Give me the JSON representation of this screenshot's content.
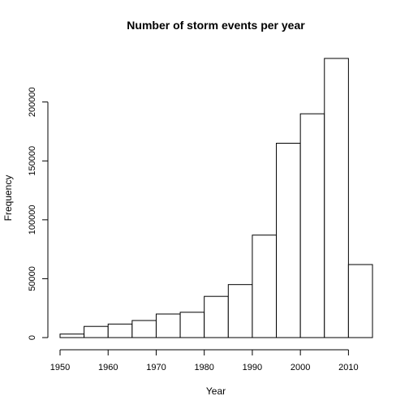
{
  "chart_data": {
    "type": "bar",
    "subtype": "histogram",
    "title": "Number of storm events per year",
    "xlabel": "Year",
    "ylabel": "Frequency",
    "bins": [
      {
        "start": 1950,
        "end": 1955,
        "value": 3000
      },
      {
        "start": 1955,
        "end": 1960,
        "value": 9500
      },
      {
        "start": 1960,
        "end": 1965,
        "value": 11500
      },
      {
        "start": 1965,
        "end": 1970,
        "value": 14500
      },
      {
        "start": 1970,
        "end": 1975,
        "value": 20000
      },
      {
        "start": 1975,
        "end": 1980,
        "value": 21500
      },
      {
        "start": 1980,
        "end": 1985,
        "value": 35000
      },
      {
        "start": 1985,
        "end": 1990,
        "value": 45000
      },
      {
        "start": 1990,
        "end": 1995,
        "value": 87000
      },
      {
        "start": 1995,
        "end": 2000,
        "value": 165000
      },
      {
        "start": 2000,
        "end": 2005,
        "value": 190000
      },
      {
        "start": 2005,
        "end": 2010,
        "value": 237000
      },
      {
        "start": 2010,
        "end": 2015,
        "value": 62000
      }
    ],
    "xlim": [
      1950,
      2015
    ],
    "ylim": [
      0,
      237000
    ],
    "x_ticks": [
      1950,
      1960,
      1970,
      1980,
      1990,
      2000,
      2010
    ],
    "y_ticks": [
      0,
      50000,
      100000,
      150000,
      200000
    ],
    "bar_fill": "#ffffff",
    "bar_stroke": "#000000",
    "grid": false,
    "legend": "none"
  }
}
